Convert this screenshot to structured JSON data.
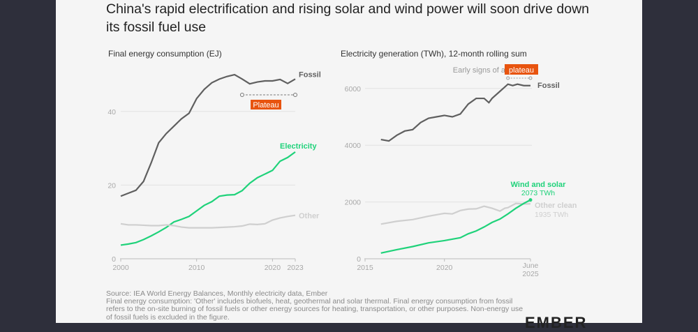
{
  "title": "China's rapid electrification and rising solar and wind power will soon drive down its fossil fuel use",
  "brand": "EMBER",
  "notes": {
    "source": "Source: IEA World Energy Balances, Monthly electricity data, Ember",
    "footnote": "Final energy consumption: 'Other' includes biofuels, heat, geothermal and solar thermal. Final energy consumption from fossil refers to the on-site burning of fossil fuels or other energy sources for heating, transportation, or other purposes. Non-energy use of fossil fuels is excluded in the figure."
  },
  "colors": {
    "fossil": "#5f5f5f",
    "electricity": "#1fd27a",
    "other": "#cfcfcf",
    "highlight": "#e8540f"
  },
  "chart_data": [
    {
      "type": "line",
      "title": "Final energy consumption (EJ)",
      "x": [
        2000,
        2001,
        2002,
        2003,
        2004,
        2005,
        2006,
        2007,
        2008,
        2009,
        2010,
        2011,
        2012,
        2013,
        2014,
        2015,
        2016,
        2017,
        2018,
        2019,
        2020,
        2021,
        2022,
        2023
      ],
      "xticks": [
        "2000",
        "2010",
        "2020",
        "2023"
      ],
      "xtick_values": [
        2000,
        2010,
        2020,
        2023
      ],
      "yticks": [
        "0",
        "20",
        "40"
      ],
      "ytick_values": [
        0,
        20,
        40
      ],
      "xlim": [
        2000,
        2023
      ],
      "ylim": [
        0,
        50
      ],
      "grid": true,
      "annotation": {
        "text": "Plateau",
        "from": 2016,
        "to": 2023
      },
      "series": [
        {
          "name": "Fossil",
          "color": "#5f5f5f",
          "values": [
            17,
            17.8,
            18.6,
            21,
            26,
            31.5,
            34,
            36,
            38,
            39.5,
            43.5,
            46,
            47.8,
            48.8,
            49.5,
            50,
            48.8,
            47.5,
            48,
            48.3,
            48.3,
            48.7,
            47.6,
            48.8
          ]
        },
        {
          "name": "Electricity",
          "color": "#1fd27a",
          "values": [
            3.7,
            4,
            4.4,
            5.2,
            6.2,
            7.3,
            8.5,
            10,
            10.7,
            11.5,
            13,
            14.5,
            15.5,
            17,
            17.3,
            17.4,
            18.5,
            20.5,
            22,
            23,
            24,
            26.5,
            27.5,
            29
          ]
        },
        {
          "name": "Other",
          "color": "#cfcfcf",
          "values": [
            9.5,
            9.2,
            9.2,
            9.1,
            9,
            9,
            9.2,
            9,
            8.6,
            8.4,
            8.4,
            8.4,
            8.4,
            8.5,
            8.6,
            8.7,
            8.9,
            9.4,
            9.3,
            9.5,
            10.5,
            11.1,
            11.5,
            11.8
          ]
        }
      ]
    },
    {
      "type": "line",
      "title": "Electricity generation (TWh), 12-month rolling sum",
      "xticks": [
        "2015",
        "2020",
        "June 2025"
      ],
      "xtick_values": [
        2015,
        2020,
        2025.42
      ],
      "yticks": [
        "0",
        "2000",
        "4000",
        "6000"
      ],
      "ytick_values": [
        0,
        2000,
        4000,
        6000
      ],
      "xlim": [
        2015,
        2025.42
      ],
      "ylim": [
        0,
        6500
      ],
      "grid": true,
      "annotation": {
        "text_prefix": "Early signs of a",
        "text": "plateau",
        "from": 2024,
        "to": 2025.42
      },
      "series": [
        {
          "name": "Fossil",
          "color": "#5f5f5f",
          "x": [
            2016,
            2016.5,
            2017,
            2017.5,
            2018,
            2018.5,
            2019,
            2019.5,
            2020,
            2020.5,
            2021,
            2021.5,
            2022,
            2022.5,
            2022.8,
            2023,
            2023.5,
            2024,
            2024.3,
            2024.6,
            2025,
            2025.42
          ],
          "values": [
            4200,
            4150,
            4350,
            4500,
            4550,
            4800,
            4950,
            5000,
            5050,
            5000,
            5100,
            5450,
            5650,
            5650,
            5500,
            5650,
            5900,
            6150,
            6100,
            6150,
            6100,
            6100
          ]
        },
        {
          "name": "Other clean",
          "color": "#cfcfcf",
          "end_label": "1935 TWh",
          "x": [
            2016,
            2017,
            2018,
            2019,
            2020,
            2020.5,
            2021,
            2021.5,
            2022,
            2022.5,
            2023,
            2023.5,
            2023.8,
            2024,
            2024.5,
            2025,
            2025.42
          ],
          "values": [
            1220,
            1320,
            1380,
            1500,
            1600,
            1580,
            1700,
            1750,
            1760,
            1850,
            1780,
            1680,
            1780,
            1800,
            1950,
            1930,
            1935
          ]
        },
        {
          "name": "Wind and solar",
          "color": "#1fd27a",
          "end_label": "2073 TWh",
          "x": [
            2016,
            2017,
            2018,
            2019,
            2020,
            2021,
            2021.5,
            2022,
            2022.5,
            2023,
            2023.5,
            2024,
            2024.5,
            2025,
            2025.42
          ],
          "values": [
            200,
            320,
            430,
            560,
            640,
            740,
            880,
            980,
            1120,
            1280,
            1400,
            1580,
            1780,
            1950,
            2073
          ]
        }
      ]
    }
  ]
}
